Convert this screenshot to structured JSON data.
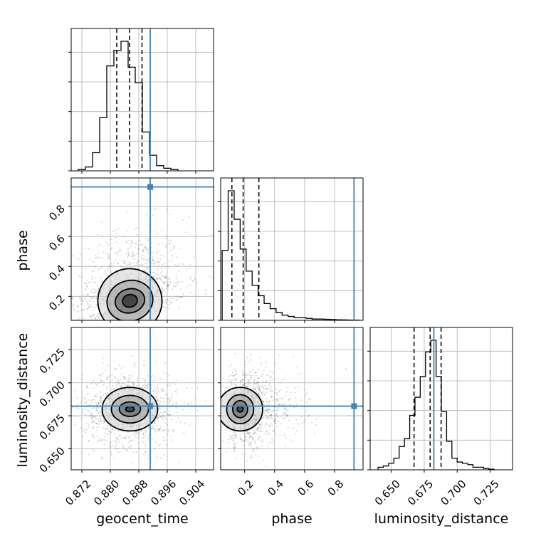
{
  "chart_data": {
    "type": "corner",
    "parameters": [
      "geocent_time",
      "phase",
      "luminosity_distance"
    ],
    "truth_color": "#4682b4",
    "grid": true,
    "ranges": {
      "geocent_time": [
        0.869,
        0.909
      ],
      "phase": [
        0.04,
        0.99
      ],
      "luminosity_distance": [
        0.634,
        0.742
      ]
    },
    "truths": {
      "geocent_time": 0.8912,
      "phase": 0.93,
      "luminosity_distance": 0.6823
    },
    "quantile_lines": {
      "geocent_time": [
        0.8818,
        0.8854,
        0.8889
      ],
      "phase": [
        0.115,
        0.19,
        0.295
      ],
      "luminosity_distance": [
        0.6673,
        0.6795,
        0.6878
      ]
    },
    "ticks": {
      "geocent_time": {
        "values": [
          0.872,
          0.88,
          0.888,
          0.896,
          0.904
        ],
        "labels": [
          "0.872",
          "0.880",
          "0.888",
          "0.896",
          "0.904"
        ]
      },
      "phase": {
        "values": [
          0.2,
          0.4,
          0.6,
          0.8
        ],
        "labels": [
          "0.2",
          "0.4",
          "0.6",
          "0.8"
        ]
      },
      "luminosity_distance": {
        "values": [
          0.65,
          0.675,
          0.7,
          0.725
        ],
        "labels": [
          "0.650",
          "0.675",
          "0.700",
          "0.725"
        ]
      }
    },
    "histograms": {
      "geocent_time": {
        "edges": [
          0.871,
          0.873,
          0.875,
          0.877,
          0.879,
          0.881,
          0.883,
          0.885,
          0.887,
          0.889,
          0.891,
          0.893,
          0.895,
          0.897,
          0.899
        ],
        "counts": [
          0.01,
          0.03,
          0.14,
          0.41,
          0.81,
          0.93,
          1.0,
          0.8,
          0.68,
          0.3,
          0.12,
          0.04,
          0.02,
          0.01
        ]
      },
      "phase": {
        "edges": [
          0.05,
          0.09,
          0.13,
          0.17,
          0.21,
          0.25,
          0.29,
          0.33,
          0.37,
          0.41,
          0.45,
          0.49,
          0.53,
          0.57,
          0.61,
          0.65,
          0.69,
          0.73,
          0.77,
          0.81,
          0.85,
          0.89,
          0.93,
          0.97
        ],
        "counts": [
          0.54,
          1.0,
          0.78,
          0.55,
          0.38,
          0.27,
          0.19,
          0.13,
          0.09,
          0.06,
          0.04,
          0.03,
          0.02,
          0.02,
          0.015,
          0.01,
          0.01,
          0.008,
          0.006,
          0.004,
          0.003,
          0.002,
          0.001
        ]
      },
      "luminosity_distance": {
        "edges": [
          0.64,
          0.644,
          0.648,
          0.652,
          0.656,
          0.66,
          0.664,
          0.668,
          0.672,
          0.676,
          0.68,
          0.684,
          0.688,
          0.692,
          0.696,
          0.7,
          0.704,
          0.708,
          0.712,
          0.716,
          0.72,
          0.724,
          0.728
        ],
        "counts": [
          0.02,
          0.03,
          0.05,
          0.09,
          0.18,
          0.24,
          0.42,
          0.56,
          0.72,
          0.91,
          1.0,
          0.72,
          0.45,
          0.22,
          0.09,
          0.06,
          0.05,
          0.04,
          0.02,
          0.02,
          0.01,
          0.005
        ]
      }
    },
    "pairs": [
      {
        "x": "geocent_time",
        "y": "phase",
        "center": [
          0.8855,
          0.17
        ],
        "contours": [
          {
            "level": 0.5,
            "rx": 0.0021,
            "ry": 0.042,
            "tilt": 0.22
          },
          {
            "level": 1.0,
            "rx": 0.0042,
            "ry": 0.08,
            "tilt": 0.25
          },
          {
            "level": 1.5,
            "rx": 0.0065,
            "ry": 0.135,
            "tilt": 0.3
          },
          {
            "level": 2.0,
            "rx": 0.009,
            "ry": 0.215,
            "tilt": 0.32
          }
        ]
      },
      {
        "x": "geocent_time",
        "y": "luminosity_distance",
        "center": [
          0.8855,
          0.68
        ],
        "contours": [
          {
            "level": 0.5,
            "rx": 0.0012,
            "ry": 0.002,
            "tilt": 0
          },
          {
            "level": 1.0,
            "rx": 0.003,
            "ry": 0.0055,
            "tilt": 0
          },
          {
            "level": 1.5,
            "rx": 0.0052,
            "ry": 0.0105,
            "tilt": 0
          },
          {
            "level": 2.0,
            "rx": 0.0078,
            "ry": 0.0165,
            "tilt": 0
          }
        ]
      },
      {
        "x": "phase",
        "y": "luminosity_distance",
        "center": [
          0.17,
          0.68
        ],
        "contours": [
          {
            "level": 0.5,
            "rx": 0.02,
            "ry": 0.0022,
            "tilt": 0
          },
          {
            "level": 1.0,
            "rx": 0.05,
            "ry": 0.0065,
            "tilt": 0
          },
          {
            "level": 1.5,
            "rx": 0.09,
            "ry": 0.011,
            "tilt": 0
          },
          {
            "level": 2.0,
            "rx": 0.15,
            "ry": 0.0165,
            "tilt": 0
          }
        ]
      }
    ]
  }
}
